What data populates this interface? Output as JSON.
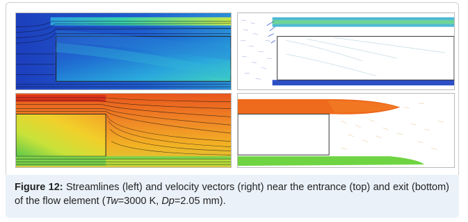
{
  "figure": {
    "panels": [
      {
        "id": "top-left",
        "content": "streamlines",
        "location": "entrance"
      },
      {
        "id": "top-right",
        "content": "velocity vectors",
        "location": "entrance"
      },
      {
        "id": "bottom-left",
        "content": "streamlines",
        "location": "exit"
      },
      {
        "id": "bottom-right",
        "content": "velocity vectors",
        "location": "exit"
      }
    ],
    "colors": {
      "cold": "#1a3fbf",
      "cool": "#2aa6d8",
      "mid": "#3ccf7a",
      "warm": "#f2c21a",
      "hot": "#e8561c",
      "caption_bg": "#eaf1f9"
    }
  },
  "caption": {
    "label": "Figure 12:",
    "text_1": " Streamlines (left) and velocity vectors (right) near the entrance (top) and exit (bottom) of the flow element (",
    "tw_var": "Tw",
    "tw_val": "=3000 K, ",
    "dp_var": "Dp",
    "dp_val": "=2.05 mm)."
  }
}
